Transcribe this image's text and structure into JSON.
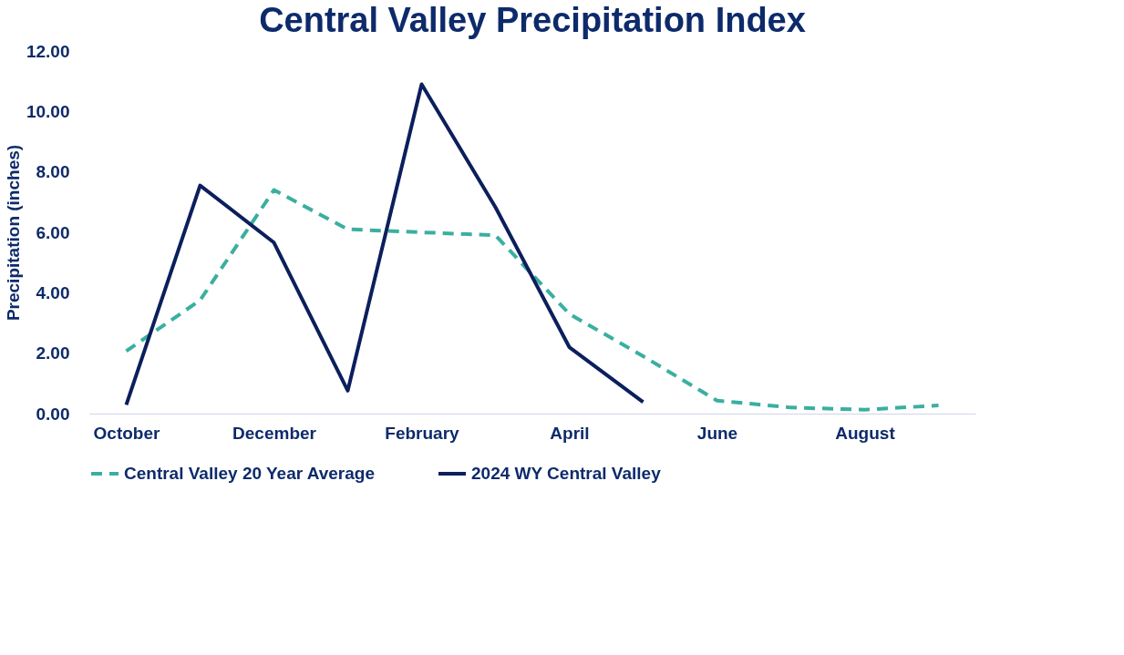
{
  "chart_data": {
    "type": "line",
    "title": "Central Valley Precipitation Index",
    "ylabel": "Precipitation (inches)",
    "categories": [
      "October",
      null,
      "December",
      null,
      "February",
      null,
      "April",
      null,
      "June",
      null,
      "August",
      null
    ],
    "series": [
      {
        "name": "Central Valley 20 Year Average",
        "color": "#3aafa0",
        "line_style": "dashed",
        "values": [
          2.07,
          3.75,
          7.4,
          6.1,
          6.0,
          5.9,
          3.3,
          1.9,
          0.43,
          0.2,
          0.13,
          0.27
        ]
      },
      {
        "name": "2024 WY Central Valley",
        "color": "#0c1f5c",
        "line_style": "solid",
        "values": [
          0.29,
          7.55,
          5.66,
          0.76,
          10.9,
          6.83,
          2.2,
          0.38,
          null,
          null,
          null,
          null
        ]
      }
    ],
    "ylim": [
      0,
      12
    ],
    "yticks": [
      {
        "value": 0,
        "label": "0.00"
      },
      {
        "value": 2,
        "label": "2.00"
      },
      {
        "value": 4,
        "label": "4.00"
      },
      {
        "value": 6,
        "label": "6.00"
      },
      {
        "value": 8,
        "label": "8.00"
      },
      {
        "value": 10,
        "label": "10.00"
      },
      {
        "value": 12,
        "label": "12.00"
      }
    ],
    "grid": false,
    "legend": "bottom",
    "marker": "none"
  }
}
